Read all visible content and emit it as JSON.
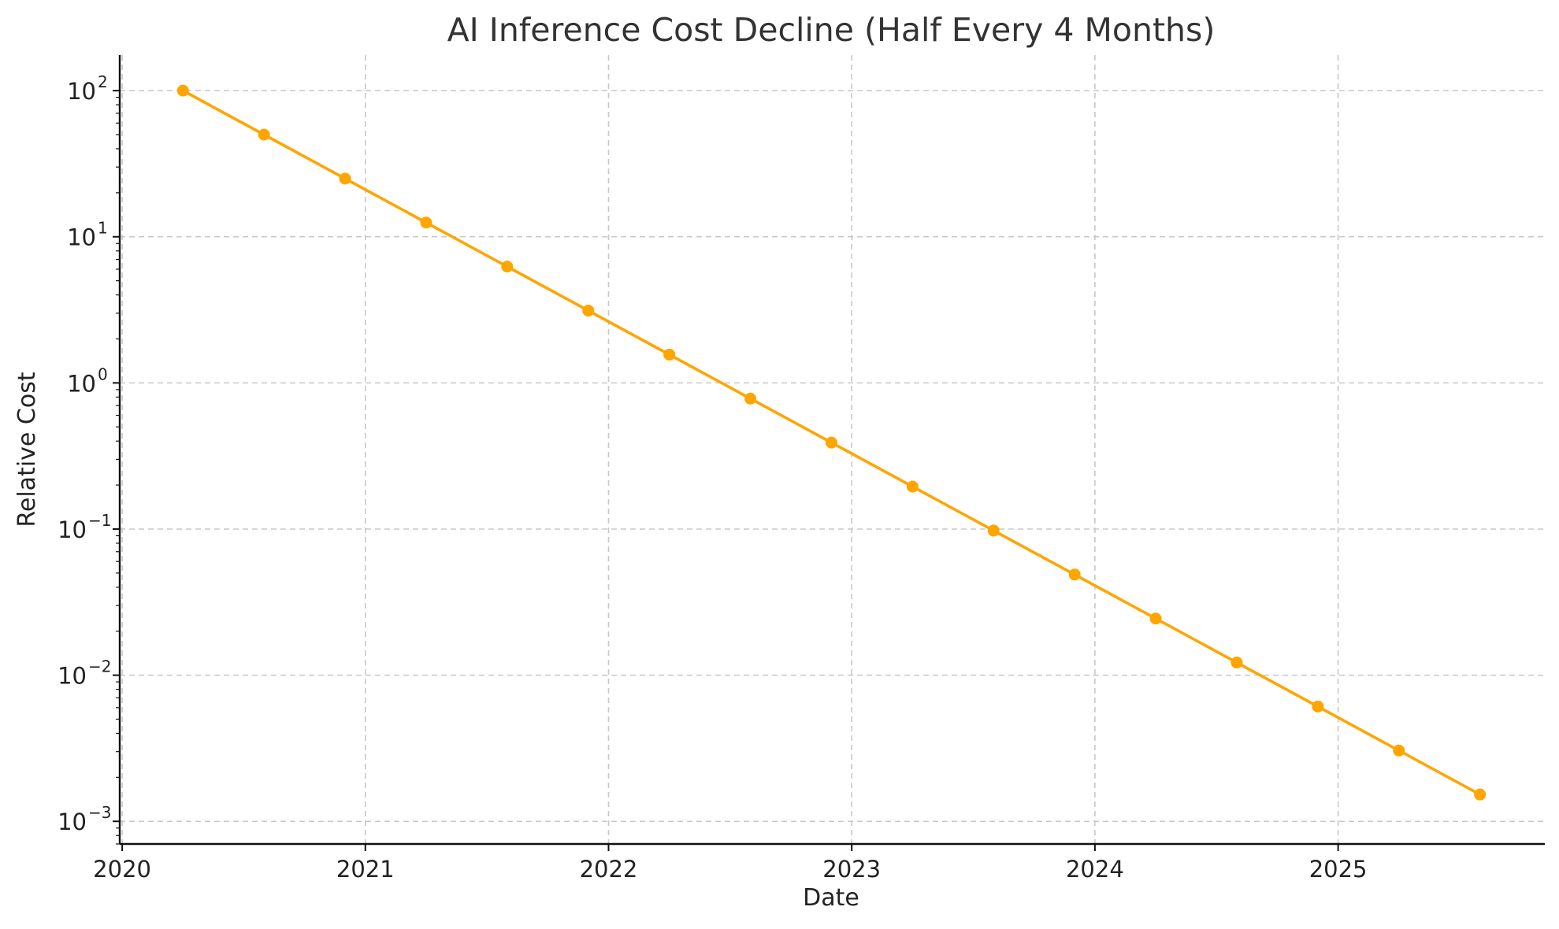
{
  "chart_data": {
    "type": "line",
    "title": "AI Inference Cost Decline (Half Every 4 Months)",
    "xlabel": "Date",
    "ylabel": "Relative Cost",
    "yscale": "log",
    "grid": true,
    "xlim": [
      2019.99,
      2025.85
    ],
    "ylim": [
      0.0007,
      175
    ],
    "x_ticks": [
      {
        "value": 2020,
        "label": "2020"
      },
      {
        "value": 2021,
        "label": "2021"
      },
      {
        "value": 2022,
        "label": "2022"
      },
      {
        "value": 2023,
        "label": "2023"
      },
      {
        "value": 2024,
        "label": "2024"
      },
      {
        "value": 2025,
        "label": "2025"
      }
    ],
    "y_ticks": [
      {
        "value": 100,
        "base": "10",
        "exp": "2"
      },
      {
        "value": 10,
        "base": "10",
        "exp": "1"
      },
      {
        "value": 1,
        "base": "10",
        "exp": "0"
      },
      {
        "value": 0.1,
        "base": "10",
        "exp": "−1"
      },
      {
        "value": 0.01,
        "base": "10",
        "exp": "−2"
      },
      {
        "value": 0.001,
        "base": "10",
        "exp": "−3"
      }
    ],
    "series": [
      {
        "name": "Relative Cost",
        "color": "#FFA500",
        "points": [
          {
            "date": "2020-04",
            "x": 2020.25,
            "y": 100
          },
          {
            "date": "2020-08",
            "x": 2020.5833,
            "y": 50
          },
          {
            "date": "2020-12",
            "x": 2020.9167,
            "y": 25
          },
          {
            "date": "2021-04",
            "x": 2021.25,
            "y": 12.5
          },
          {
            "date": "2021-08",
            "x": 2021.5833,
            "y": 6.25
          },
          {
            "date": "2021-12",
            "x": 2021.9167,
            "y": 3.125
          },
          {
            "date": "2022-04",
            "x": 2022.25,
            "y": 1.5625
          },
          {
            "date": "2022-08",
            "x": 2022.5833,
            "y": 0.78125
          },
          {
            "date": "2022-12",
            "x": 2022.9167,
            "y": 0.390625
          },
          {
            "date": "2023-04",
            "x": 2023.25,
            "y": 0.1953125
          },
          {
            "date": "2023-08",
            "x": 2023.5833,
            "y": 0.09765625
          },
          {
            "date": "2023-12",
            "x": 2023.9167,
            "y": 0.048828125
          },
          {
            "date": "2024-04",
            "x": 2024.25,
            "y": 0.0244140625
          },
          {
            "date": "2024-08",
            "x": 2024.5833,
            "y": 0.01220703125
          },
          {
            "date": "2024-12",
            "x": 2024.9167,
            "y": 0.006103515625
          },
          {
            "date": "2025-04",
            "x": 2025.25,
            "y": 0.0030517578125
          },
          {
            "date": "2025-08",
            "x": 2025.5833,
            "y": 0.00152587890625
          }
        ]
      }
    ]
  }
}
